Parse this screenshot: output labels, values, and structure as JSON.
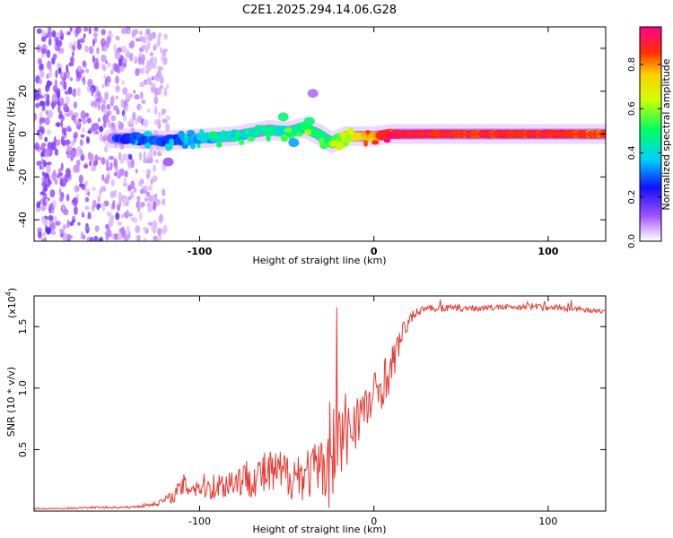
{
  "title": "C2E1.2025.294.14.06.G28",
  "colors": {
    "snr_line": "#e83a34",
    "spectrogram_track": "#ff3010"
  },
  "chart_data": [
    {
      "type": "heatmap",
      "name": "spectrogram",
      "xlabel": "Height of straight line (km)",
      "ylabel": "Frequency (Hz)",
      "x_range": [
        -195,
        133
      ],
      "y_range": [
        -50,
        50
      ],
      "x_ticks": [
        -100,
        0,
        100
      ],
      "y_ticks": [
        -40,
        -20,
        0,
        20,
        40
      ],
      "colorbar": {
        "label": "Normalized spectral amplitude",
        "range": [
          0,
          0.97
        ],
        "ticks": [
          "0.0",
          "0.2",
          "0.4",
          "0.6",
          "0.8"
        ]
      },
      "noise_region_x": [
        -195,
        -122
      ],
      "track": {
        "x": [
          -140,
          -120,
          -100,
          -80,
          -60,
          -50,
          -40,
          -32,
          -24,
          -16,
          -10,
          0,
          10,
          20,
          60,
          100,
          133
        ],
        "frequency": [
          -2,
          -3,
          -2,
          -1,
          2,
          1,
          3,
          0,
          -4,
          -1,
          -1,
          -1,
          0,
          0,
          0,
          0,
          0
        ],
        "amplitude": [
          0.25,
          0.3,
          0.35,
          0.4,
          0.45,
          0.45,
          0.5,
          0.5,
          0.55,
          0.6,
          0.75,
          0.85,
          0.9,
          0.95,
          0.9,
          0.92,
          0.85
        ]
      },
      "blobs": [
        {
          "x": -52,
          "frequency": 8,
          "amplitude": 0.5
        },
        {
          "x": -37,
          "frequency": 6,
          "amplitude": 0.5
        },
        {
          "x": -46,
          "frequency": -4,
          "amplitude": 0.35
        },
        {
          "x": -35,
          "frequency": 19,
          "amplitude": 0.1
        },
        {
          "x": -118,
          "frequency": -13,
          "amplitude": 0.12
        }
      ]
    },
    {
      "type": "line",
      "name": "snr",
      "xlabel": "Height of straight line (km)",
      "ylabel": "SNR (10 * v/v)",
      "y_multiplier": "(x10",
      "y_multiplier_exp": "4",
      "y_multiplier_close": ")",
      "x_range": [
        -195,
        133
      ],
      "y_range": [
        0,
        1.75
      ],
      "x_ticks": [
        -100,
        0,
        100
      ],
      "y_ticks": [
        "0.5",
        "1.0",
        "1.5"
      ],
      "series": [
        {
          "name": "SNR",
          "x": [
            -195,
            -180,
            -160,
            -140,
            -125,
            -115,
            -110,
            -100,
            -90,
            -80,
            -70,
            -60,
            -50,
            -40,
            -30,
            -25,
            -20,
            -15,
            -10,
            -5,
            0,
            5,
            10,
            15,
            20,
            25,
            30,
            40,
            60,
            80,
            100,
            120,
            133
          ],
          "values": [
            0.02,
            0.02,
            0.03,
            0.03,
            0.06,
            0.12,
            0.2,
            0.2,
            0.2,
            0.25,
            0.28,
            0.3,
            0.3,
            0.3,
            0.35,
            0.5,
            0.55,
            0.65,
            0.78,
            0.82,
            0.92,
            1.05,
            1.15,
            1.4,
            1.55,
            1.62,
            1.65,
            1.65,
            1.65,
            1.66,
            1.66,
            1.64,
            1.62
          ],
          "noise": [
            0.005,
            0.005,
            0.008,
            0.01,
            0.02,
            0.05,
            0.1,
            0.1,
            0.12,
            0.14,
            0.17,
            0.2,
            0.2,
            0.22,
            0.24,
            0.5,
            0.45,
            0.35,
            0.25,
            0.2,
            0.22,
            0.2,
            0.18,
            0.1,
            0.06,
            0.04,
            0.03,
            0.03,
            0.025,
            0.025,
            0.03,
            0.02,
            0.02
          ]
        }
      ]
    }
  ]
}
